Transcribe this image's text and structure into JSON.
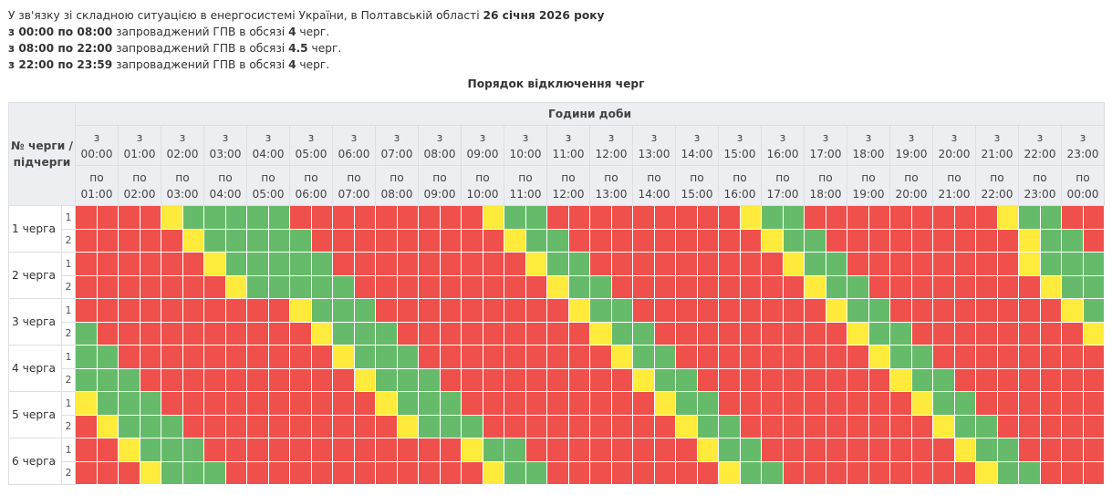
{
  "intro": {
    "line1": {
      "text": "У зв'язку зі складною ситуацією в енергосистемі України, в Полтавській області ",
      "bold": "26 січня 2026 року"
    },
    "periods": [
      {
        "range": "з 00:00 по 08:00",
        "text": " запроваджений ГПВ в обсязі ",
        "amount": "4",
        "suffix": " черг."
      },
      {
        "range": "з 08:00 по 22:00",
        "text": " запроваджений ГПВ в обсязі ",
        "amount": "4.5",
        "suffix": " черг."
      },
      {
        "range": "з 22:00 по 23:59",
        "text": " запроваджений ГПВ в обсязі ",
        "amount": "4",
        "suffix": " черг."
      }
    ]
  },
  "title": "Порядок відключення черг",
  "table": {
    "corner": "№ черги / підчерги",
    "hours_header": "Години доби",
    "from_prefix": "з",
    "to_prefix": "по",
    "hours_from": [
      "00:00",
      "01:00",
      "02:00",
      "03:00",
      "04:00",
      "05:00",
      "06:00",
      "07:00",
      "08:00",
      "09:00",
      "10:00",
      "11:00",
      "12:00",
      "13:00",
      "14:00",
      "15:00",
      "16:00",
      "17:00",
      "18:00",
      "19:00",
      "20:00",
      "21:00",
      "22:00",
      "23:00"
    ],
    "hours_to": [
      "01:00",
      "02:00",
      "03:00",
      "04:00",
      "05:00",
      "06:00",
      "07:00",
      "08:00",
      "09:00",
      "10:00",
      "11:00",
      "12:00",
      "13:00",
      "14:00",
      "15:00",
      "16:00",
      "17:00",
      "18:00",
      "19:00",
      "20:00",
      "21:00",
      "22:00",
      "23:00",
      "00:00"
    ],
    "legend_colors": {
      "R": "#ef504c",
      "G": "#66bb6a",
      "Y": "#ffeb3b"
    },
    "queues": [
      {
        "label": "1 черга",
        "subs": [
          {
            "sub": "1",
            "slots": "RRRRYGGGGGRRRRRRRRRYGGRRRRRRRRRYGGRRRRRRRRRYGGRR"
          },
          {
            "sub": "2",
            "slots": "RRRRRYGGGGGRRRRRRRRRYGGRRRRRRRRRYGGRRRRRRRRRYGGR"
          }
        ]
      },
      {
        "label": "2 черга",
        "subs": [
          {
            "sub": "1",
            "slots": "RRRRRRYGGGGGRRRRRRRRRYGGRRRRRRRRRYGGRRRRRRRRYGGG"
          },
          {
            "sub": "2",
            "slots": "RRRRRRRYGGGGGRRRRRRRRRYGGRRRRRRRRRYGGRRRRRRRRYGG"
          }
        ]
      },
      {
        "label": "3 черга",
        "subs": [
          {
            "sub": "1",
            "slots": "RRRRRRRRRRYGGGRRRRRRRRRYGGRRRRRRRRRYGGRRRRRRRRYG"
          },
          {
            "sub": "2",
            "slots": "GRRRRRRRRRRYGGGRRRRRRRRRYGGRRRRRRRRRYGGRRRRRRRRY"
          }
        ]
      },
      {
        "label": "4 черга",
        "subs": [
          {
            "sub": "1",
            "slots": "GGRRRRRRRRRRYGGGRRRRRRRRRYGGRRRRRRRRRYGGRRRRRRRR"
          },
          {
            "sub": "2",
            "slots": "GGGRRRRRRRRRRYGGGRRRRRRRRRYGGRRRRRRRRRYGGRRRRRRR"
          }
        ]
      },
      {
        "label": "5 черга",
        "subs": [
          {
            "sub": "1",
            "slots": "YGGGRRRRRRRRRRYGGGRRRRRRRRRYGGRRRRRRRRRYGGRRRRRR"
          },
          {
            "sub": "2",
            "slots": "RYGGGRRRRRRRRRRYGGGRRRRRRRRRYGGRRRRRRRRRYGGRRRRR"
          }
        ]
      },
      {
        "label": "6 черга",
        "subs": [
          {
            "sub": "1",
            "slots": "RRYGGGRRRRRRRRRRRRYGGRRRRRRRRYGGRRRRRRRRRYGGRRRR"
          },
          {
            "sub": "2",
            "slots": "RRRYGGGRRRRRRRRRRRRYGGRRRRRRRRYGGRRRRRRRRRYGGRRR"
          }
        ]
      }
    ]
  }
}
